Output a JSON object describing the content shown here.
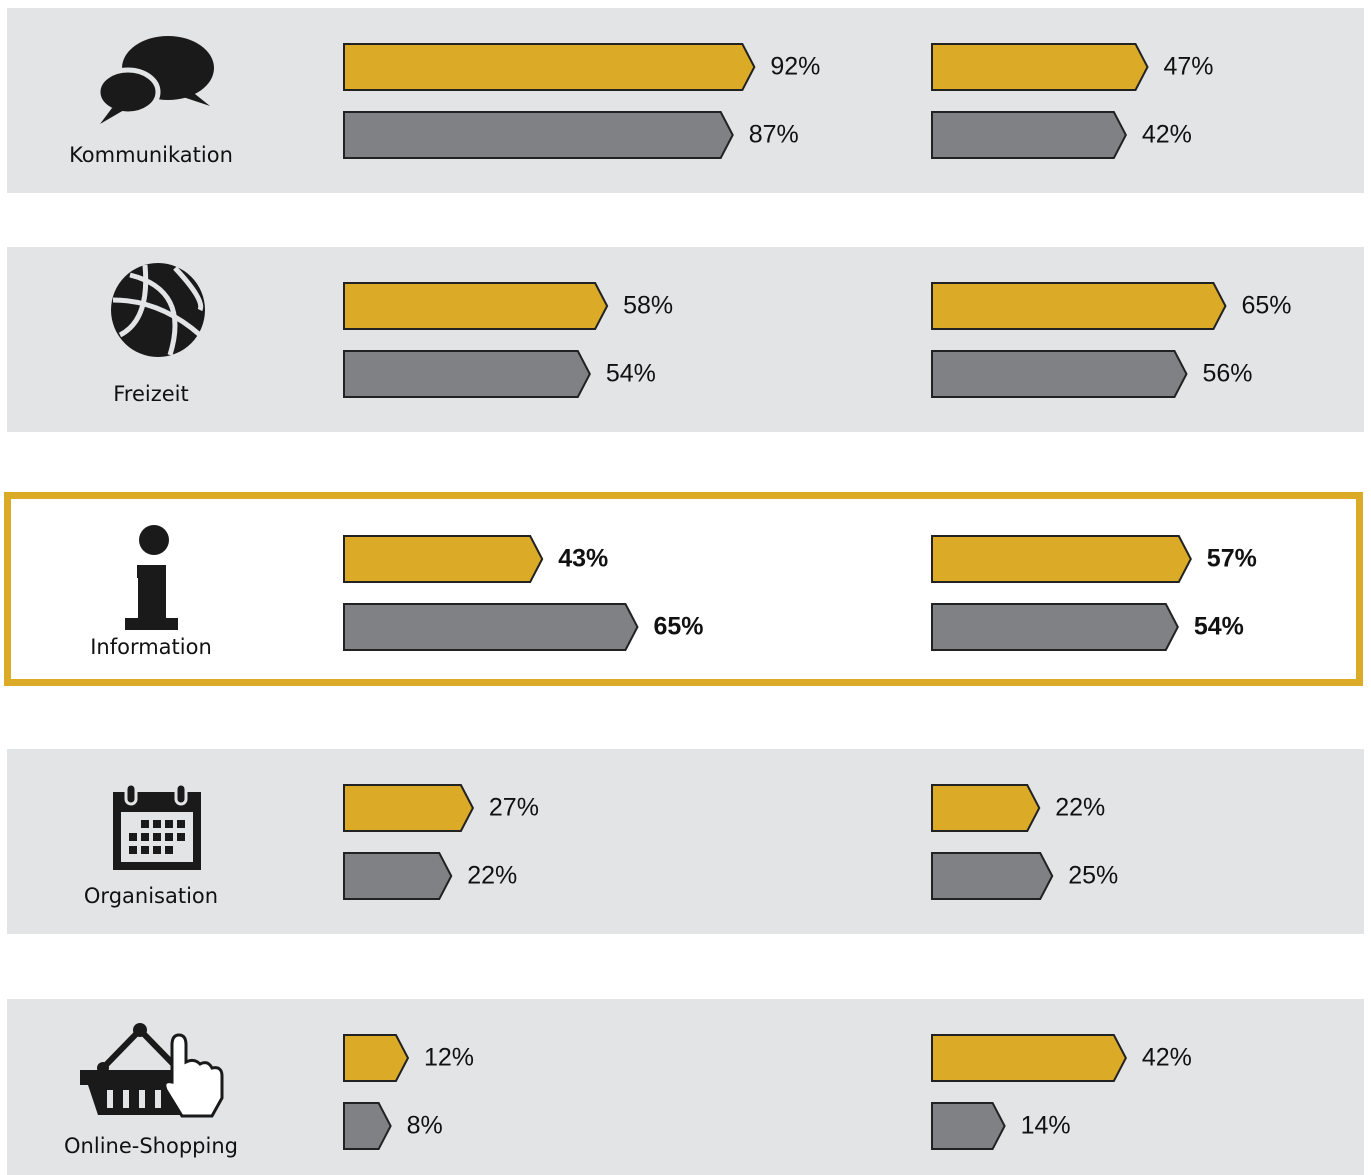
{
  "chart_data": {
    "type": "bar",
    "categories": [
      "Kommunikation",
      "Freizeit",
      "Information",
      "Organisation",
      "Online-Shopping"
    ],
    "highlight": 2,
    "xlim": [
      0,
      100
    ],
    "panels": [
      {
        "series": [
          {
            "color": "#dbab27",
            "values": [
              92,
              58,
              43,
              27,
              12
            ],
            "value_labels": [
              "92%",
              "58%",
              "43%",
              "27%",
              "12%"
            ]
          },
          {
            "color": "#808184",
            "values": [
              87,
              54,
              65,
              22,
              8
            ],
            "value_labels": [
              "87%",
              "54%",
              "65%",
              "22%",
              "8%"
            ]
          }
        ]
      },
      {
        "series": [
          {
            "color": "#dbab27",
            "values": [
              47,
              65,
              57,
              22,
              42
            ],
            "value_labels": [
              "47%",
              "65%",
              "57%",
              "22%",
              "42%"
            ]
          },
          {
            "color": "#808184",
            "values": [
              42,
              56,
              54,
              25,
              14
            ],
            "value_labels": [
              "42%",
              "56%",
              "54%",
              "25%",
              "14%"
            ]
          }
        ]
      }
    ]
  }
}
